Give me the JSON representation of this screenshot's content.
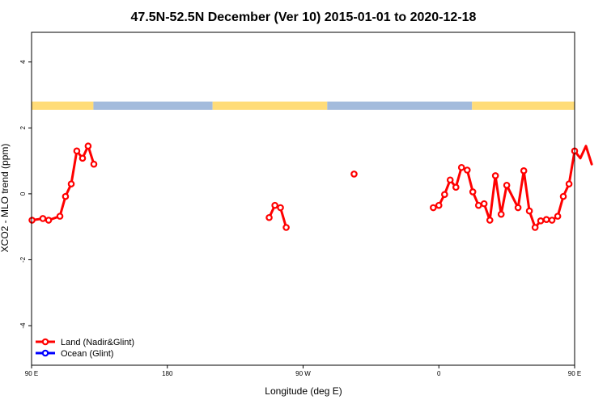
{
  "chart_data": {
    "type": "line",
    "title": "47.5N-52.5N December (Ver 10)   2015-01-01 to 2020-12-18",
    "xlabel": "Longitude (deg E)",
    "ylabel": "XCO2 - MLO trend (ppm)",
    "xlim": [
      90,
      450
    ],
    "ylim": [
      -5.2,
      4.9
    ],
    "x_ticks": [
      {
        "value": 90,
        "label": "90 E"
      },
      {
        "value": 180,
        "label": "180"
      },
      {
        "value": 270,
        "label": "90 W"
      },
      {
        "value": 360,
        "label": "0"
      },
      {
        "value": 450,
        "label": "90 E"
      },
      {
        "value": 540,
        "label": "180"
      }
    ],
    "y_ticks": [
      {
        "value": 4,
        "label": "4"
      },
      {
        "value": 2,
        "label": "2"
      },
      {
        "value": 0,
        "label": "0"
      },
      {
        "value": -2,
        "label": "-2"
      },
      {
        "value": -4,
        "label": "-4"
      }
    ],
    "legend_position": "bottom-left",
    "grid": false,
    "series": [
      {
        "name": "Land (Nadir&Glint)",
        "color": "#ff0000",
        "segments": [
          [
            [
              90.3,
              -0.8
            ],
            [
              97.5,
              -0.75
            ],
            [
              101.3,
              -0.8
            ],
            [
              108.8,
              -0.68
            ],
            [
              112.5,
              -0.08
            ],
            [
              116.3,
              0.3
            ],
            [
              120,
              1.3
            ],
            [
              123.8,
              1.08
            ],
            [
              127.5,
              1.45
            ],
            [
              131.3,
              0.9
            ]
          ],
          [
            [
              247.5,
              -0.72
            ],
            [
              251.3,
              -0.35
            ],
            [
              255,
              -0.42
            ],
            [
              258.8,
              -1.02
            ]
          ],
          [
            [
              303.8,
              0.6
            ]
          ],
          [
            [
              356.3,
              -0.42
            ],
            [
              360,
              -0.35
            ],
            [
              363.8,
              -0.02
            ],
            [
              367.5,
              0.42
            ],
            [
              371.3,
              0.2
            ],
            [
              375,
              0.8
            ],
            [
              378.8,
              0.72
            ],
            [
              382.5,
              0.06
            ],
            [
              386.3,
              -0.35
            ],
            [
              390,
              -0.3
            ],
            [
              393.8,
              -0.8
            ],
            [
              397.5,
              0.55
            ],
            [
              401.3,
              -0.62
            ],
            [
              405,
              0.26
            ],
            [
              412.5,
              -0.42
            ],
            [
              416.3,
              0.7
            ],
            [
              420,
              -0.52
            ],
            [
              423.8,
              -1.02
            ],
            [
              427.5,
              -0.82
            ],
            [
              431.3,
              -0.78
            ],
            [
              435,
              -0.8
            ],
            [
              438.8,
              -0.68
            ],
            [
              442.5,
              -0.08
            ],
            [
              446.3,
              0.3
            ],
            [
              450,
              1.3
            ],
            [
              453.8,
              1.08
            ],
            [
              457.5,
              1.45
            ],
            [
              461.3,
              0.9
            ]
          ]
        ]
      },
      {
        "name": "Ocean (Glint)",
        "color": "#0000ff",
        "segments": []
      }
    ],
    "surface_band": {
      "y_range": [
        2.55,
        2.8
      ],
      "land_color": "#ffdc78",
      "ocean_color": "#a3bbdc",
      "segments": [
        {
          "from": 90,
          "to": 131,
          "kind": "land"
        },
        {
          "from": 131,
          "to": 210,
          "kind": "ocean"
        },
        {
          "from": 210,
          "to": 286,
          "kind": "land"
        },
        {
          "from": 286,
          "to": 382,
          "kind": "ocean"
        },
        {
          "from": 382,
          "to": 461,
          "kind": "land"
        },
        {
          "from": 461,
          "to": 541,
          "kind": "ocean"
        }
      ]
    }
  }
}
